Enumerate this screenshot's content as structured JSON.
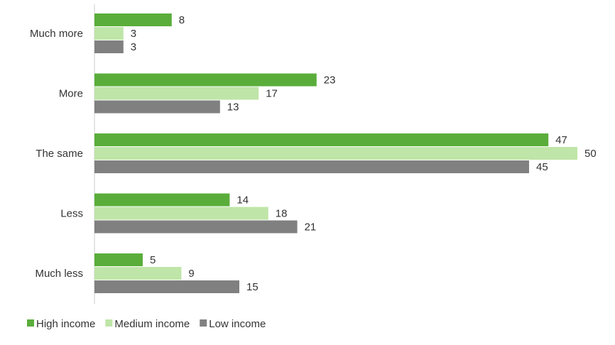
{
  "chart_data": {
    "type": "bar",
    "orientation": "horizontal",
    "title": "",
    "xlabel": "",
    "ylabel": "",
    "categories": [
      "Much more",
      "More",
      "The same",
      "Less",
      "Much less"
    ],
    "series": [
      {
        "name": "High income",
        "values": [
          8,
          23,
          47,
          14,
          5
        ],
        "color": "#5aad3a"
      },
      {
        "name": "Medium income",
        "values": [
          3,
          17,
          50,
          18,
          9
        ],
        "color": "#bfe5a8"
      },
      {
        "name": "Low income",
        "values": [
          3,
          13,
          45,
          21,
          15
        ],
        "color": "#808080"
      }
    ],
    "xlim": [
      0,
      50
    ],
    "grid": false,
    "legend_position": "bottom-left",
    "data_labels": true
  }
}
